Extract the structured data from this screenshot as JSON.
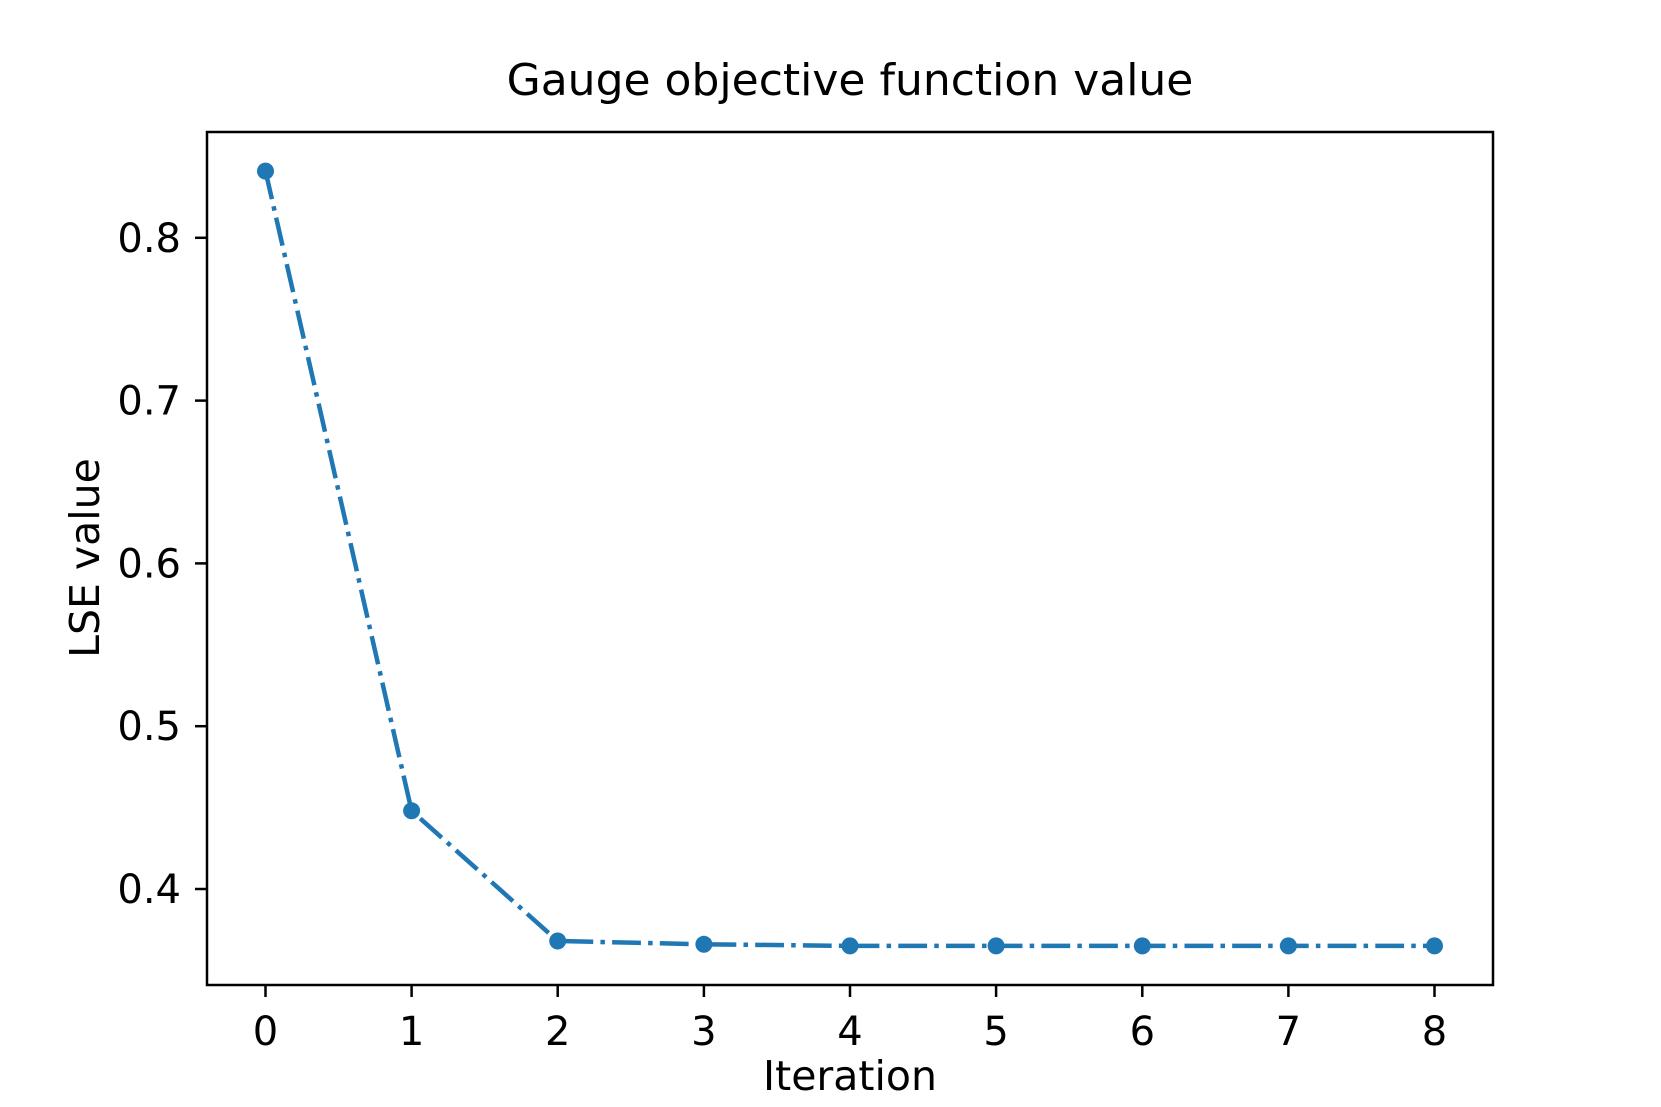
{
  "figure": {
    "background_color": "#ffffff",
    "text_color": "#000000"
  },
  "chart_data": {
    "type": "line",
    "title": "Gauge objective function value",
    "xlabel": "Iteration",
    "ylabel": "LSE value",
    "x": [
      0,
      1,
      2,
      3,
      4,
      5,
      6,
      7,
      8
    ],
    "y": [
      0.841,
      0.448,
      0.368,
      0.366,
      0.365,
      0.365,
      0.365,
      0.365,
      0.365
    ],
    "series": [
      {
        "name": "LSE value",
        "x": [
          0,
          1,
          2,
          3,
          4,
          5,
          6,
          7,
          8
        ],
        "values": [
          0.841,
          0.448,
          0.368,
          0.366,
          0.365,
          0.365,
          0.365,
          0.365,
          0.365
        ]
      }
    ],
    "xticks": [
      0,
      1,
      2,
      3,
      4,
      5,
      6,
      7,
      8
    ],
    "xtick_labels": [
      "0",
      "1",
      "2",
      "3",
      "4",
      "5",
      "6",
      "7",
      "8"
    ],
    "yticks": [
      0.4,
      0.5,
      0.6,
      0.7,
      0.8
    ],
    "ytick_labels": [
      "0.4",
      "0.5",
      "0.6",
      "0.7",
      "0.8"
    ],
    "xlim": [
      -0.4,
      8.4
    ],
    "ylim": [
      0.341,
      0.865
    ],
    "grid": false,
    "legend": null,
    "line_color": "#1f77b4",
    "line_style": "dashdot",
    "marker": "circle",
    "spine_color": "#000000"
  }
}
